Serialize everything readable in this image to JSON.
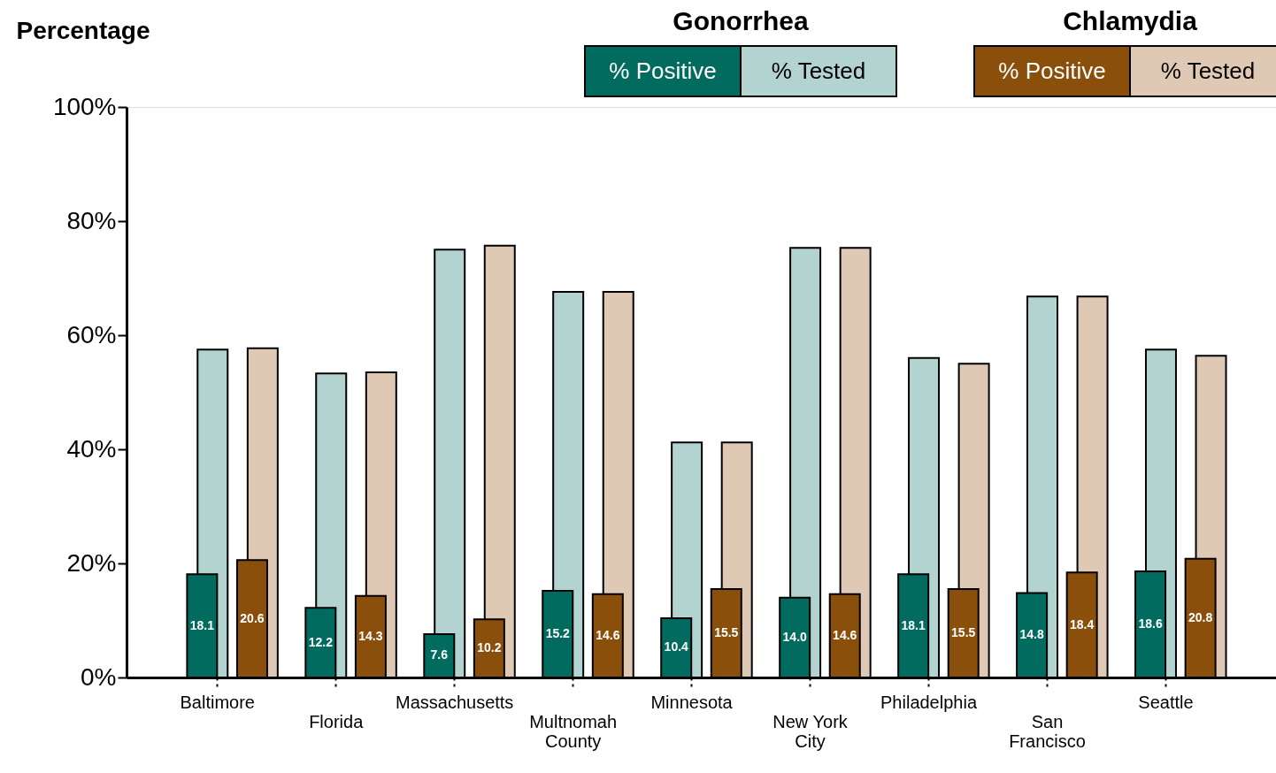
{
  "chart_data": {
    "type": "bar",
    "ylabel": "Percentage",
    "legend_title": [
      "Gonorrhea",
      "Chlamydia"
    ],
    "legend": "top right",
    "grid": false,
    "categories": [
      "Baltimore",
      "Florida",
      "Massachusetts",
      "Multnomah County",
      "Minnesota",
      "New York City",
      "Philadelphia",
      "San Francisco",
      "Seattle"
    ],
    "ylim": [
      0,
      100
    ],
    "yticks": [
      {
        "value": 0,
        "label": "0%"
      },
      {
        "value": 20,
        "label": "20%"
      },
      {
        "value": 40,
        "label": "40%"
      },
      {
        "value": 60,
        "label": "60%"
      },
      {
        "value": 80,
        "label": "80%"
      },
      {
        "value": 100,
        "label": "100%"
      }
    ],
    "series": [
      {
        "name": "% Positive",
        "color": "#006b5e",
        "values": [
          18.1,
          12.2,
          7.6,
          15.2,
          10.4,
          14.0,
          18.1,
          14.8,
          18.6
        ],
        "value_labels": [
          "18.1",
          "12.2",
          "7.6",
          "15.2",
          "10.4",
          "14.0",
          "18.1",
          "14.8",
          "18.6"
        ]
      },
      {
        "name": "% Tested",
        "color": "#b2d3d0",
        "values": [
          57.5,
          53.3,
          75.0,
          67.6,
          41.2,
          75.3,
          56.0,
          66.8,
          57.5
        ]
      },
      {
        "name": "% Positive",
        "color": "#8b4f0c",
        "values": [
          20.6,
          14.3,
          10.2,
          14.6,
          15.5,
          14.6,
          15.5,
          18.4,
          20.8
        ],
        "value_labels": [
          "20.6",
          "14.3",
          "10.2",
          "14.6",
          "15.5",
          "14.6",
          "15.5",
          "18.4",
          "20.8"
        ]
      },
      {
        "name": "% Tested",
        "color": "#dfc9b4",
        "values": [
          57.7,
          53.5,
          75.7,
          67.6,
          41.2,
          75.3,
          55.0,
          66.8,
          56.4
        ]
      }
    ]
  }
}
